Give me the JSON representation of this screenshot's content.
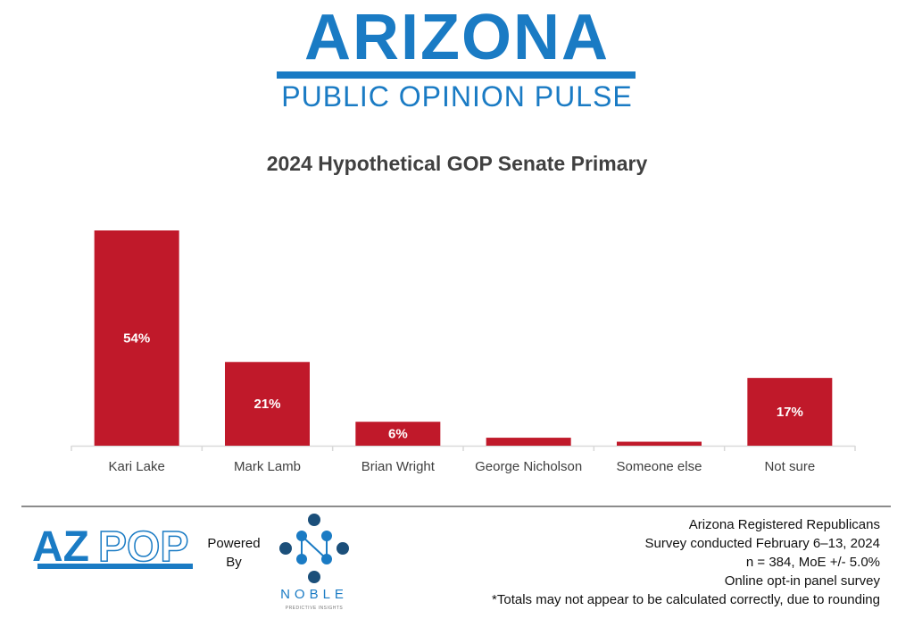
{
  "header": {
    "logo_title": "ARIZONA",
    "logo_subtitle": "PUBLIC OPINION PULSE"
  },
  "chart_data": {
    "type": "bar",
    "title": "2024 Hypothetical GOP Senate Primary",
    "categories": [
      "Kari Lake",
      "Mark Lamb",
      "Brian Wright",
      "George Nicholson",
      "Someone else",
      "Not sure"
    ],
    "values": [
      54,
      21,
      6,
      2,
      1,
      17
    ],
    "data_labels": [
      "54%",
      "21%",
      "6%",
      "",
      "",
      "17%"
    ],
    "xlabel": "",
    "ylabel": "",
    "ylim": [
      0,
      60
    ],
    "grid": false,
    "bar_color": "#c0192a"
  },
  "footer": {
    "azpop_logo": "AZPOP",
    "powered_by": [
      "Powered",
      "By"
    ],
    "noble_name": "NOBLE",
    "noble_tagline": "PREDICTIVE INSIGHTS",
    "notes": [
      "Arizona Registered Republicans",
      "Survey conducted February 6–13, 2024",
      "n = 384, MoE +/- 5.0%",
      "Online opt-in panel survey",
      "*Totals may not appear to be calculated correctly, due to rounding"
    ]
  }
}
